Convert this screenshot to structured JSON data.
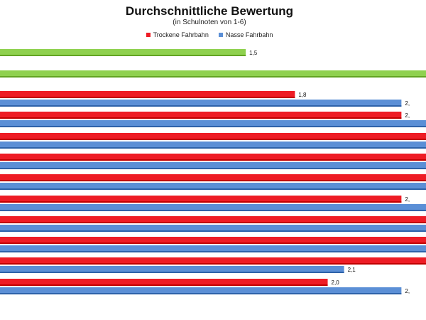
{
  "chart_data": {
    "type": "bar",
    "orientation": "horizontal",
    "title": "Durchschnittliche Bewertung",
    "subtitle": "(in Schulnoten von 1-6)",
    "legend_position": "top",
    "grid": false,
    "xlim": [
      0,
      2.6
    ],
    "series": [
      {
        "name": "Trockene Fahrbahn",
        "color": "#ee1c25"
      },
      {
        "name": "Nasse Fahrbahn",
        "color": "#5b8fd6"
      }
    ],
    "highlight_color": "#8fd14f",
    "groups": [
      {
        "bars": [
          {
            "series": null,
            "value": 1.5,
            "label": "1,5"
          }
        ]
      },
      {
        "bars": [
          {
            "series": null,
            "value": 2.6,
            "label": ""
          }
        ]
      },
      {
        "bars": [
          {
            "series": 0,
            "value": 1.8,
            "label": "1,8"
          },
          {
            "series": 1,
            "value": 2.45,
            "label": "2,"
          }
        ]
      },
      {
        "bars": [
          {
            "series": 0,
            "value": 2.45,
            "label": "2,"
          },
          {
            "series": 1,
            "value": 2.6,
            "label": ""
          }
        ]
      },
      {
        "bars": [
          {
            "series": 0,
            "value": 2.6,
            "label": ""
          },
          {
            "series": 1,
            "value": 2.6,
            "label": ""
          }
        ]
      },
      {
        "bars": [
          {
            "series": 0,
            "value": 2.6,
            "label": ""
          },
          {
            "series": 1,
            "value": 2.6,
            "label": ""
          }
        ]
      },
      {
        "bars": [
          {
            "series": 0,
            "value": 2.6,
            "label": ""
          },
          {
            "series": 1,
            "value": 2.6,
            "label": ""
          }
        ]
      },
      {
        "bars": [
          {
            "series": 0,
            "value": 2.45,
            "label": "2,"
          },
          {
            "series": 1,
            "value": 2.6,
            "label": ""
          }
        ]
      },
      {
        "bars": [
          {
            "series": 0,
            "value": 2.6,
            "label": ""
          },
          {
            "series": 1,
            "value": 2.6,
            "label": ""
          }
        ]
      },
      {
        "bars": [
          {
            "series": 0,
            "value": 2.6,
            "label": ""
          },
          {
            "series": 1,
            "value": 2.6,
            "label": ""
          }
        ]
      },
      {
        "bars": [
          {
            "series": 0,
            "value": 2.6,
            "label": ""
          },
          {
            "series": 1,
            "value": 2.1,
            "label": "2,1"
          }
        ]
      },
      {
        "bars": [
          {
            "series": 0,
            "value": 2.0,
            "label": "2,0"
          },
          {
            "series": 1,
            "value": 2.45,
            "label": "2,"
          }
        ]
      }
    ]
  }
}
